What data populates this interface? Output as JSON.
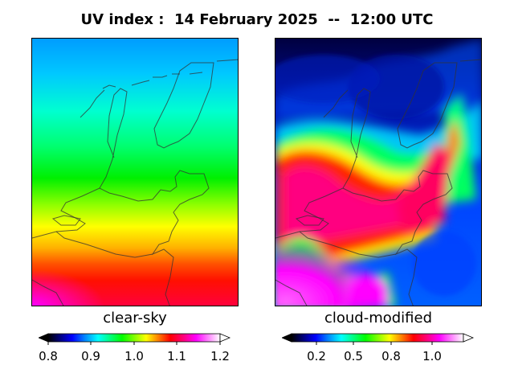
{
  "title": "UV index :  14 February 2025  --  12:00 UTC",
  "panels": [
    {
      "label": "clear-sky",
      "colorbar": {
        "ticks": [
          "0.8",
          "0.9",
          "1.0",
          "1.1",
          "1.2"
        ],
        "range": [
          0.8,
          1.2
        ],
        "extend": "both"
      }
    },
    {
      "label": "cloud-modified",
      "colorbar": {
        "ticks": [
          "0.2",
          "0.5",
          "0.8",
          "1.0"
        ],
        "extend": "both"
      }
    }
  ],
  "colormap": [
    "#000000",
    "#000080",
    "#0000ff",
    "#0080ff",
    "#00ffff",
    "#00ff80",
    "#00ff00",
    "#80ff00",
    "#ffff00",
    "#ff8000",
    "#ff0000",
    "#ff0080",
    "#ff00ff",
    "#ff80ff",
    "#ffffff"
  ],
  "map_region": "Netherlands"
}
